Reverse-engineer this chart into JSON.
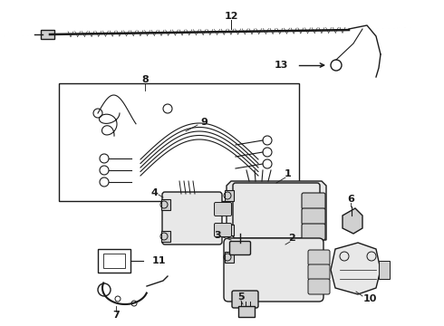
{
  "background_color": "#ffffff",
  "line_color": "#1a1a1a",
  "fig_width": 4.9,
  "fig_height": 3.6,
  "dpi": 100,
  "lw": 1.0
}
